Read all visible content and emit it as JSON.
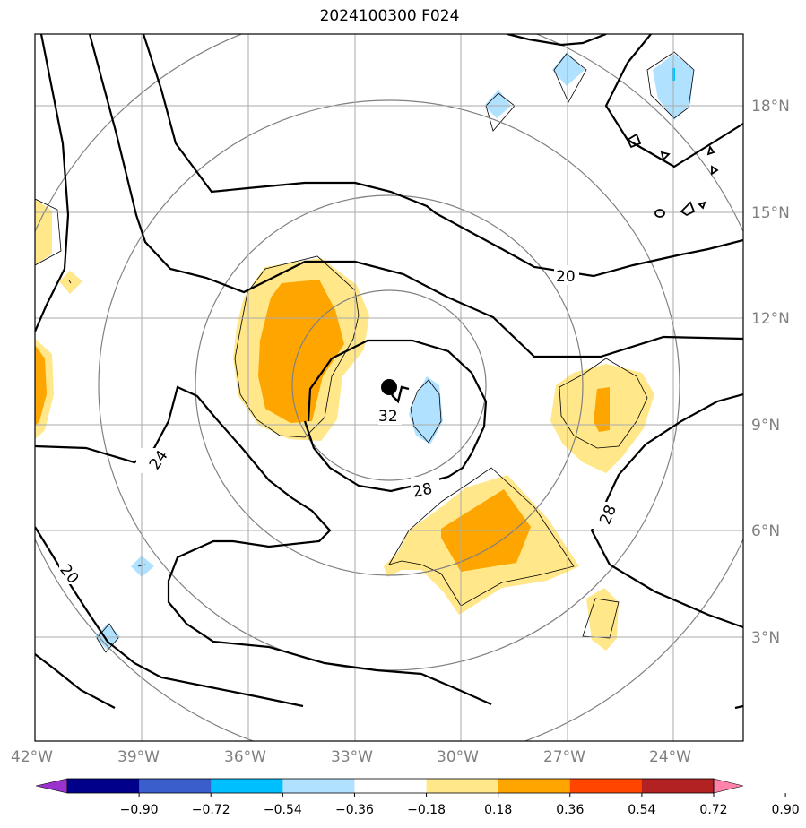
{
  "title": "2024100300 F024",
  "lon_ticks": [
    "42°W",
    "39°W",
    "36°W",
    "33°W",
    "30°W",
    "27°W",
    "24°W"
  ],
  "lat_ticks": [
    "18°N",
    "15°N",
    "12°N",
    "9°N",
    "6°N",
    "3°N"
  ],
  "contour_labels": [
    "20",
    "24",
    "28",
    "32",
    "28",
    "20"
  ],
  "colorbar": {
    "labels": [
      "−0.90",
      "−0.72",
      "−0.54",
      "−0.36",
      "−0.18",
      "0.18",
      "0.36",
      "0.54",
      "0.72",
      "0.90"
    ],
    "colors": [
      "#9a32cd",
      "#00008b",
      "#3a5fcd",
      "#00bfff",
      "#b0e2ff",
      "#ffffff",
      "#ffe78a",
      "#ffa500",
      "#ff4500",
      "#b22222",
      "#ff82ab"
    ]
  },
  "center_marker": {
    "lon": "32°W",
    "lat": "10°N"
  }
}
